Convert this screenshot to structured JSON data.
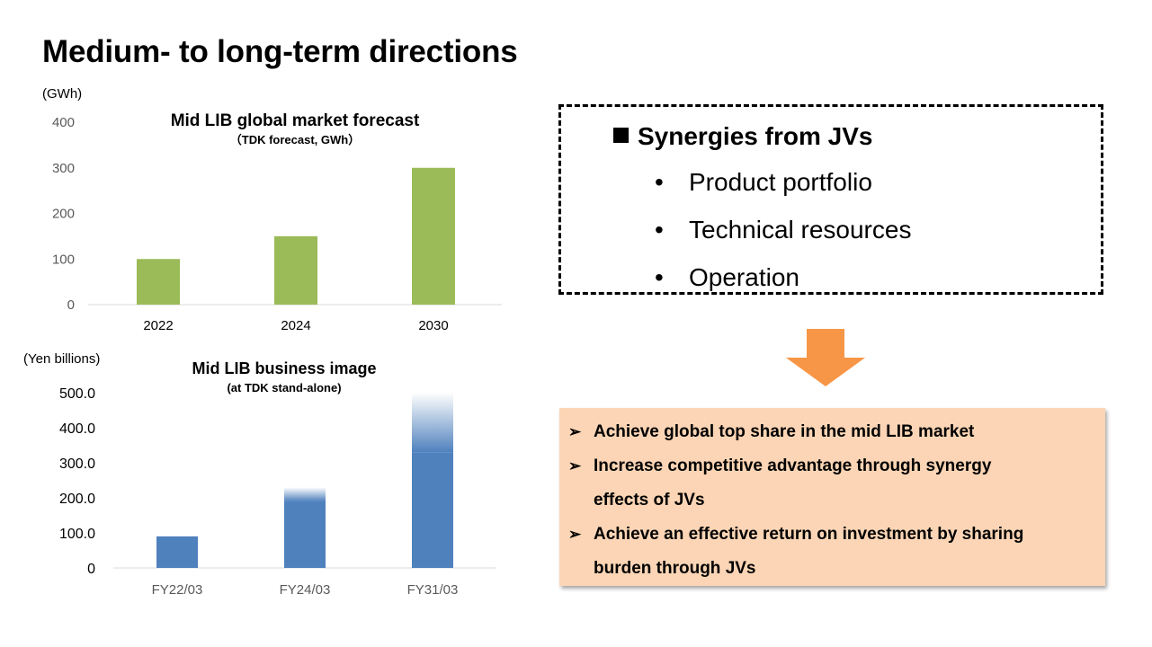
{
  "page": {
    "title": "Medium- to long-term directions"
  },
  "chart_data": [
    {
      "type": "bar",
      "title": "Mid LIB global market forecast",
      "subtitle": "（TDK forecast, GWh）",
      "unit_label": "(GWh)",
      "categories": [
        "2022",
        "2024",
        "2030"
      ],
      "values": [
        100,
        150,
        300
      ],
      "ylim": [
        0,
        400
      ],
      "yticks": [
        "0",
        "100",
        "200",
        "300",
        "400"
      ],
      "color": "#9bbb59",
      "grid": false
    },
    {
      "type": "bar",
      "title": "Mid LIB business image",
      "subtitle": "(at TDK stand-alone)",
      "unit_label": "(Yen billions)",
      "categories": [
        "FY22/03",
        "FY24/03",
        "FY31/03"
      ],
      "values": [
        90,
        230,
        500
      ],
      "solid_values": [
        90,
        190,
        330
      ],
      "ylim": [
        0,
        500
      ],
      "yticks": [
        "0",
        "100.0",
        "200.0",
        "300.0",
        "400.0",
        "500.0"
      ],
      "color": "#4f81bd",
      "grid": false
    }
  ],
  "synergies": {
    "heading": "Synergies from JVs",
    "bullet": "•",
    "items": [
      "Product portfolio",
      "Technical resources",
      "Operation"
    ]
  },
  "arrow": {
    "icon": "down-arrow-icon",
    "color": "#f79646"
  },
  "goals": {
    "bullet": "➢",
    "lines": [
      {
        "text": "Achieve global top share in the mid LIB market"
      },
      {
        "text": "Increase competitive advantage through synergy"
      },
      {
        "text": "effects of JVs"
      },
      {
        "text": "Achieve an effective return on investment by sharing"
      },
      {
        "text": "burden through JVs"
      }
    ],
    "bulleted": [
      true,
      true,
      false,
      true,
      false
    ],
    "background": "#fbd5b5"
  }
}
